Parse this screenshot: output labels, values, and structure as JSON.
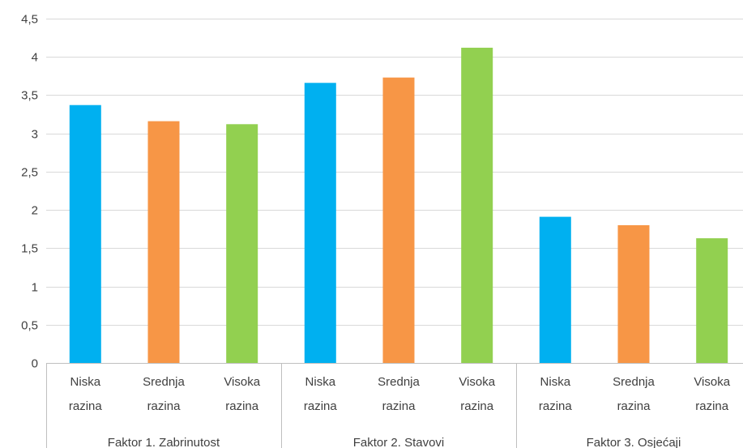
{
  "chart_data": {
    "type": "bar",
    "title": "",
    "xlabel": "",
    "ylabel": "",
    "ylim": [
      0,
      4.5
    ],
    "yticks": [
      "0",
      "0,5",
      "1",
      "1,5",
      "2",
      "2,5",
      "3",
      "3,5",
      "4",
      "4,5"
    ],
    "grid": true,
    "legend": "none",
    "groups": [
      {
        "label": "Faktor 1. Zabrinutost",
        "bars": [
          {
            "label_line1": "Niska",
            "label_line2": "razina",
            "value": 3.37,
            "color": "#00B0F0"
          },
          {
            "label_line1": "Srednja",
            "label_line2": "razina",
            "value": 3.16,
            "color": "#F79646"
          },
          {
            "label_line1": "Visoka",
            "label_line2": "razina",
            "value": 3.12,
            "color": "#92D050"
          }
        ]
      },
      {
        "label": "Faktor 2. Stavovi",
        "bars": [
          {
            "label_line1": "Niska",
            "label_line2": "razina",
            "value": 3.66,
            "color": "#00B0F0"
          },
          {
            "label_line1": "Srednja",
            "label_line2": "razina",
            "value": 3.73,
            "color": "#F79646"
          },
          {
            "label_line1": "Visoka",
            "label_line2": "razina",
            "value": 4.12,
            "color": "#92D050"
          }
        ]
      },
      {
        "label": "Faktor 3. Osjećaji",
        "bars": [
          {
            "label_line1": "Niska",
            "label_line2": "razina",
            "value": 1.91,
            "color": "#00B0F0"
          },
          {
            "label_line1": "Srednja",
            "label_line2": "razina",
            "value": 1.8,
            "color": "#F79646"
          },
          {
            "label_line1": "Visoka",
            "label_line2": "razina",
            "value": 1.63,
            "color": "#92D050"
          }
        ]
      }
    ],
    "colors": {
      "grid": "#D9D9D9",
      "axis": "#BFBFBF",
      "text": "#404040"
    }
  }
}
